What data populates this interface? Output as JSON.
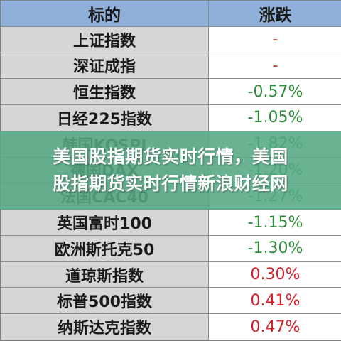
{
  "table": {
    "headers": {
      "name": "标的",
      "change": "涨跌"
    },
    "rows": [
      {
        "name": "上证指数",
        "change": "-",
        "color": "#c0392b"
      },
      {
        "name": "深证成指",
        "change": "-",
        "color": "#c0392b"
      },
      {
        "name": "恒生指数",
        "change": "-0.57%",
        "color": "#2e8b3a"
      },
      {
        "name": "日经225指数",
        "change": "-1.05%",
        "color": "#2e8b3a"
      },
      {
        "name": "韩国KOSPI",
        "change": "-1.82%",
        "color": "#2e8b3a"
      },
      {
        "name": "德国DAX",
        "change": "-1.20%",
        "color": "#2e8b3a"
      },
      {
        "name": "法国CAC40",
        "change": "-1.27%",
        "color": "#2e8b3a"
      },
      {
        "name": "英国富时100",
        "change": "-1.15%",
        "color": "#2e8b3a"
      },
      {
        "name": "欧洲斯托克50",
        "change": "-1.30%",
        "color": "#2e8b3a"
      },
      {
        "name": "道琼斯指数",
        "change": "0.30%",
        "color": "#d0202a"
      },
      {
        "name": "标普500指数",
        "change": "0.41%",
        "color": "#d0202a"
      },
      {
        "name": "纳斯达克指数",
        "change": "0.47%",
        "color": "#d0202a"
      }
    ]
  },
  "overlay": {
    "line1": "美国股指期货实时行情，美国",
    "line2": "股指期货实时行情新浪财经网"
  },
  "colors": {
    "header_bg": "#8fb0d8",
    "name_bg": "#d6d6d6",
    "overlay_bg": "#54a884",
    "negative": "#2e8b3a",
    "positive": "#d0202a"
  }
}
